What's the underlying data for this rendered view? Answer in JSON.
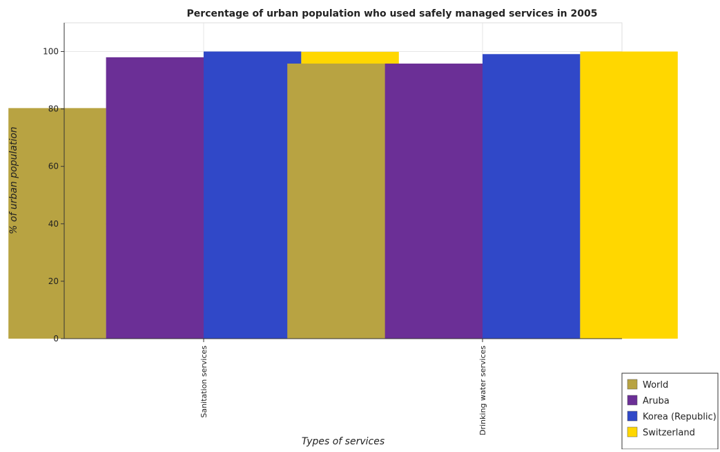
{
  "chart_data": {
    "type": "bar",
    "title": "Percentage of urban population who used safely managed services in 2005",
    "xlabel": "Types of services",
    "ylabel": "% of urban population",
    "categories": [
      "Sanitation services",
      "Drinking water services"
    ],
    "series": [
      {
        "name": "World",
        "color": "#b8a342",
        "values": [
          80.3,
          95.8
        ]
      },
      {
        "name": "Aruba",
        "color": "#6b2f96",
        "values": [
          98.0,
          95.8
        ]
      },
      {
        "name": "Korea (Republic)",
        "color": "#3048c8",
        "values": [
          100.0,
          99.1
        ]
      },
      {
        "name": "Switzerland",
        "color": "#ffd700",
        "values": [
          99.9,
          100.0
        ]
      }
    ],
    "ylim": [
      0,
      110
    ],
    "yticks": [
      0,
      20,
      40,
      60,
      80,
      100
    ],
    "grid": true,
    "legend_position": "bottom-right"
  }
}
